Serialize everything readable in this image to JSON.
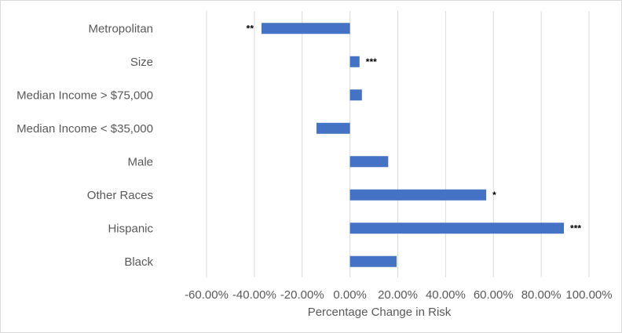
{
  "chart_data": {
    "type": "bar",
    "orientation": "horizontal",
    "categories": [
      "Metropolitan",
      "Size",
      "Median Income > $75,000",
      "Median Income < $35,000",
      "Male",
      "Other Races",
      "Hispanic",
      "Black"
    ],
    "values": [
      -37.0,
      4.0,
      5.0,
      -14.0,
      16.0,
      57.0,
      89.5,
      19.5
    ],
    "significance": [
      "**",
      "***",
      "",
      "",
      "",
      "*",
      "***",
      ""
    ],
    "xlabel": "Percentage Change in Risk",
    "ylabel": "",
    "title": "",
    "xlim": [
      -60,
      100
    ],
    "xticks": [
      -60,
      -40,
      -20,
      0,
      20,
      40,
      60,
      80,
      100
    ],
    "xtick_labels": [
      "-60.00%",
      "-40.00%",
      "-20.00%",
      "0.00%",
      "20.00%",
      "40.00%",
      "60.00%",
      "80.00%",
      "100.00%"
    ],
    "grid": true,
    "bar_color": "#4472c4"
  }
}
